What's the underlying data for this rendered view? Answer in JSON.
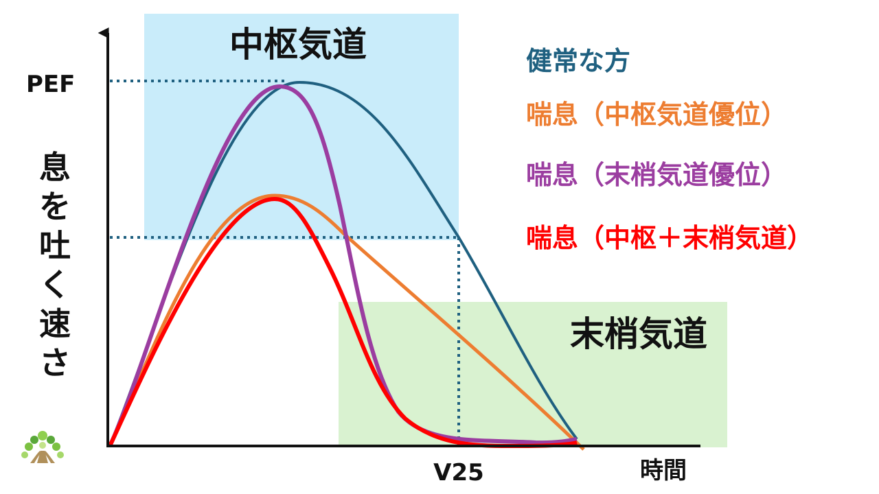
{
  "regions": {
    "central": {
      "label": "中枢気道",
      "color": "#c9ecfa"
    },
    "peripheral": {
      "label": "末梢気道",
      "color": "#d9f2d0"
    }
  },
  "axes": {
    "y_label_chars": [
      "息",
      "を",
      "吐",
      "く",
      "速",
      "さ"
    ],
    "y_marker": "PEF",
    "x_marker": "V25",
    "x_label": "時間"
  },
  "legend": [
    {
      "label": "健常な方",
      "color": "#1f6080"
    },
    {
      "label": "喘息（中枢気道優位）",
      "color": "#ed7d31"
    },
    {
      "label": "喘息（末梢気道優位）",
      "color": "#9b3da0"
    },
    {
      "label": "喘息（中枢＋末梢気道）",
      "color": "#ff0000"
    }
  ],
  "curves": {
    "healthy": {
      "color": "#1f6080"
    },
    "central": {
      "color": "#ed7d31"
    },
    "peripheral": {
      "color": "#9b3da0"
    },
    "combined": {
      "color": "#ff0000"
    }
  },
  "guide_color": "#1f6080",
  "logo_icon": "tree-logo-icon"
}
